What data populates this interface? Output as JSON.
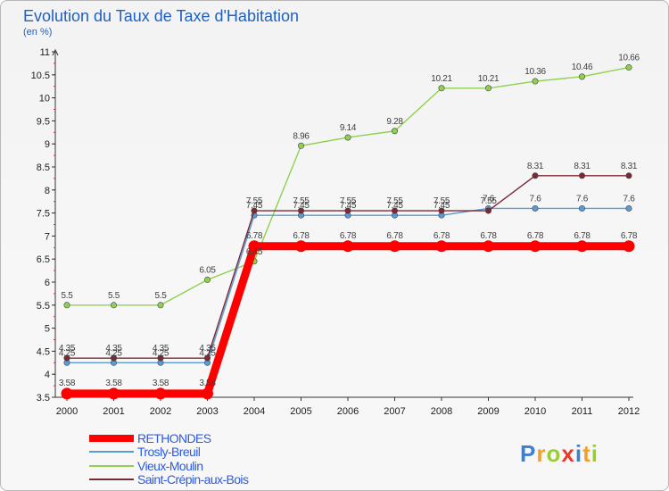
{
  "chart_data": {
    "type": "line",
    "title": "Evolution du Taux de Taxe d'Habitation",
    "subtitle": "(en %)",
    "xlabel": "",
    "ylabel": "",
    "categories": [
      "2000",
      "2001",
      "2002",
      "2003",
      "2004",
      "2005",
      "2006",
      "2007",
      "2008",
      "2009",
      "2010",
      "2011",
      "2012"
    ],
    "ylim": [
      3.5,
      11
    ],
    "yticks": [
      3.5,
      4,
      4.5,
      5,
      5.5,
      6,
      6.5,
      7,
      7.5,
      8,
      8.5,
      9,
      9.5,
      10,
      10.5,
      11
    ],
    "grid": false,
    "legend_position": "bottom-left",
    "series": [
      {
        "name": "RETHONDES",
        "color": "#ff0000",
        "values": [
          3.58,
          3.58,
          3.58,
          3.58,
          6.78,
          6.78,
          6.78,
          6.78,
          6.78,
          6.78,
          6.78,
          6.78,
          6.78
        ],
        "labels": [
          "3.58",
          "3.58",
          "3.58",
          "3.58",
          "6.78",
          "6.78",
          "6.78",
          "6.78",
          "6.78",
          "6.78",
          "6.78",
          "6.78",
          "6.78"
        ]
      },
      {
        "name": "Trosly-Breuil",
        "color": "#5b9bd5",
        "values": [
          4.25,
          4.25,
          4.25,
          4.25,
          7.45,
          7.45,
          7.45,
          7.45,
          7.45,
          7.6,
          7.6,
          7.6,
          7.6
        ],
        "labels": [
          "4.25",
          "4.25",
          "4.25",
          "4.25",
          "7.45",
          "7.45",
          "7.45",
          "7.45",
          "7.45",
          "7.6",
          "7.6",
          "7.6",
          "7.6"
        ]
      },
      {
        "name": "Vieux-Moulin",
        "color": "#8fd14f",
        "values": [
          5.5,
          5.5,
          5.5,
          6.05,
          6.45,
          8.96,
          9.14,
          9.28,
          10.21,
          10.21,
          10.36,
          10.46,
          10.66
        ],
        "labels": [
          "5.5",
          "5.5",
          "5.5",
          "6.05",
          "6.45",
          "8.96",
          "9.14",
          "9.28",
          "10.21",
          "10.21",
          "10.36",
          "10.46",
          "10.66"
        ]
      },
      {
        "name": "Saint-Crépin-aux-Bois",
        "color": "#7a2a35",
        "values": [
          4.35,
          4.35,
          4.35,
          4.35,
          7.55,
          7.55,
          7.55,
          7.55,
          7.55,
          7.55,
          8.31,
          8.31,
          8.31
        ],
        "labels": [
          "4.35",
          "4.35",
          "4.35",
          "4.35",
          "7.55",
          "7.55",
          "7.55",
          "7.55",
          "7.55",
          "7.55",
          "8.31",
          "8.31",
          "8.31"
        ]
      }
    ]
  },
  "brand": {
    "text": "Proxiti",
    "letters": [
      "P",
      "r",
      "o",
      "x",
      "i",
      "t",
      "i"
    ]
  }
}
